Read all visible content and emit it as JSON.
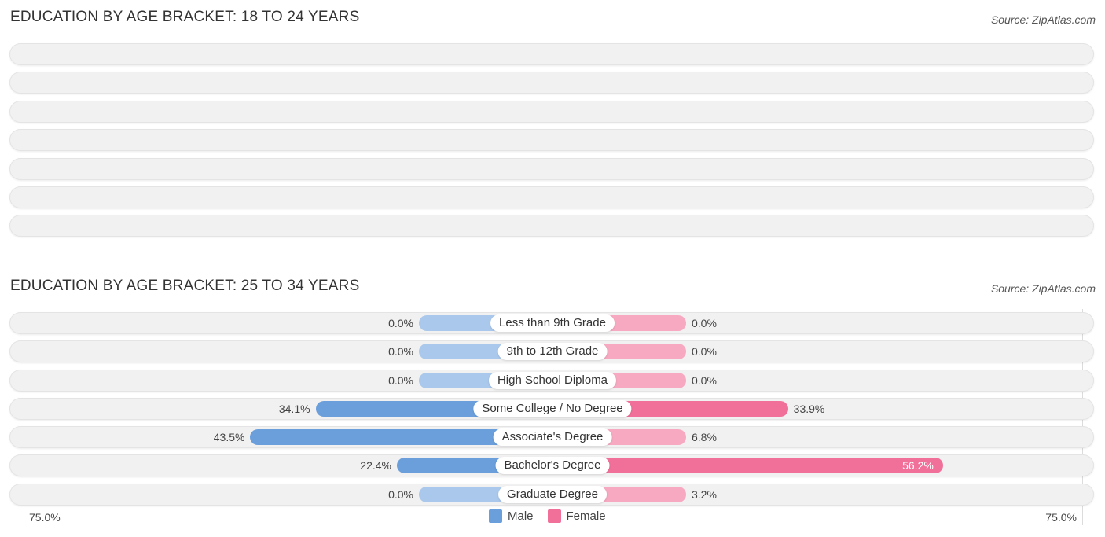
{
  "chart_data": [
    {
      "type": "bar",
      "orientation": "horizontal-diverging",
      "title": "EDUCATION BY AGE BRACKET: 18 TO 24 YEARS",
      "source": "Source: ZipAtlas.com",
      "categories": [],
      "row_count": 7,
      "series": []
    },
    {
      "type": "bar",
      "orientation": "horizontal-diverging",
      "title": "EDUCATION BY AGE BRACKET: 25 TO 34 YEARS",
      "source": "Source: ZipAtlas.com",
      "categories": [
        "Less than 9th Grade",
        "9th to 12th Grade",
        "High School Diploma",
        "Some College / No Degree",
        "Associate's Degree",
        "Bachelor's Degree",
        "Graduate Degree"
      ],
      "series": [
        {
          "name": "Male",
          "values": [
            0.0,
            0.0,
            0.0,
            34.1,
            43.5,
            22.4,
            0.0
          ],
          "labels": [
            "0.0%",
            "0.0%",
            "0.0%",
            "34.1%",
            "43.5%",
            "22.4%",
            "0.0%"
          ]
        },
        {
          "name": "Female",
          "values": [
            0.0,
            0.0,
            0.0,
            33.9,
            6.8,
            56.2,
            3.2
          ],
          "labels": [
            "0.0%",
            "0.0%",
            "0.0%",
            "33.9%",
            "6.8%",
            "56.2%",
            "3.2%"
          ]
        }
      ],
      "xlim": [
        -75,
        75
      ],
      "axis_left_label": "75.0%",
      "axis_right_label": "75.0%",
      "legend": [
        {
          "name": "Male",
          "color": "#6a9fdc"
        },
        {
          "name": "Female",
          "color": "#f07099"
        }
      ]
    }
  ],
  "colors": {
    "male_strong": "#6a9fdc",
    "male_light": "#aac8ec",
    "female_strong": "#f07099",
    "female_light": "#f6a9c1"
  }
}
